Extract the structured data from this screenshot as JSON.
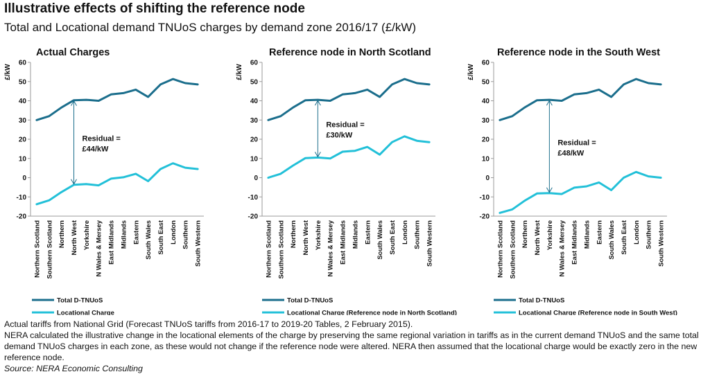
{
  "header": {
    "title": "Illustrative effects of shifting the reference node",
    "subtitle": "Total and Locational demand TNUoS charges by demand zone 2016/17 (£/kW)"
  },
  "chart_data": [
    {
      "type": "line",
      "title": "Actual Charges",
      "ylabel": "£/kW",
      "ylim": [
        -20,
        60
      ],
      "yticks": [
        -20,
        -10,
        0,
        10,
        20,
        30,
        40,
        50,
        60
      ],
      "grid": false,
      "legend_position": "bottom",
      "categories": [
        "Northern Scotland",
        "Southern Scotland",
        "Northern",
        "North West",
        "Yorkshire",
        "N Wales & Mersey",
        "East Midlands",
        "Midlands",
        "Eastern",
        "South Wales",
        "South East",
        "London",
        "Southern",
        "South Western"
      ],
      "series": [
        {
          "name": "Total D-TNUoS",
          "color": "#1b6e8c",
          "values": [
            30,
            32,
            36.5,
            40.3,
            40.5,
            40,
            43.3,
            44,
            45.8,
            42,
            48.5,
            51.3,
            49.2,
            48.5
          ]
        },
        {
          "name": "Locational Charge",
          "color": "#22c0d8",
          "values": [
            -13.8,
            -11.8,
            -7.5,
            -3.7,
            -3.3,
            -4,
            -0.5,
            0.2,
            2,
            -1.8,
            4.5,
            7.5,
            5.2,
            4.5
          ]
        }
      ],
      "annotation": {
        "lines": [
          "Residual =",
          "£44/kW"
        ],
        "category": "North West",
        "from": -3.7,
        "to": 40.3
      }
    },
    {
      "type": "line",
      "title": "Reference node in North Scotland",
      "ylabel": "£/kW",
      "ylim": [
        -20,
        60
      ],
      "yticks": [
        -20,
        -10,
        0,
        10,
        20,
        30,
        40,
        50,
        60
      ],
      "grid": false,
      "legend_position": "bottom",
      "categories": [
        "Northern Scotland",
        "Southern Scotland",
        "Northern",
        "North West",
        "Yorkshire",
        "N Wales & Mersey",
        "East Midlands",
        "Midlands",
        "Eastern",
        "South Wales",
        "South East",
        "London",
        "Southern",
        "South Western"
      ],
      "series": [
        {
          "name": "Total D-TNUoS",
          "color": "#1b6e8c",
          "values": [
            30,
            32,
            36.5,
            40.3,
            40.5,
            40,
            43.3,
            44,
            45.8,
            42,
            48.5,
            51.3,
            49.2,
            48.5
          ]
        },
        {
          "name": "Locational Charge (Reference node in North Scotland)",
          "color": "#22c0d8",
          "values": [
            0,
            2,
            6.3,
            10.2,
            10.5,
            10,
            13.5,
            14,
            16,
            12,
            18.5,
            21.5,
            19.2,
            18.5
          ]
        }
      ],
      "annotation": {
        "lines": [
          "Residual =",
          "£30/kW"
        ],
        "category": "Yorkshire",
        "from": 10.5,
        "to": 40.5
      }
    },
    {
      "type": "line",
      "title": "Reference node in the South West",
      "ylabel": "£/kW",
      "ylim": [
        -20,
        60
      ],
      "yticks": [
        -20,
        -10,
        0,
        10,
        20,
        30,
        40,
        50,
        60
      ],
      "grid": false,
      "legend_position": "bottom",
      "categories": [
        "Northern Scotland",
        "Southern Scotland",
        "Northern",
        "North West",
        "Yorkshire",
        "N Wales & Mersey",
        "East Midlands",
        "Midlands",
        "Eastern",
        "South Wales",
        "South East",
        "London",
        "Southern",
        "South Western"
      ],
      "series": [
        {
          "name": "Total D-TNUoS",
          "color": "#1b6e8c",
          "values": [
            30,
            32,
            36.5,
            40.3,
            40.5,
            40,
            43.3,
            44,
            45.8,
            42,
            48.5,
            51.3,
            49.2,
            48.5
          ]
        },
        {
          "name": "Locational Charge (Reference node in South West)",
          "color": "#22c0d8",
          "values": [
            -18.3,
            -16.5,
            -12,
            -8.2,
            -8,
            -8.5,
            -5.2,
            -4.5,
            -2.5,
            -6.5,
            0,
            3,
            0.7,
            0
          ]
        }
      ],
      "annotation": {
        "lines": [
          "Residual =",
          "£48/kW"
        ],
        "category": "Yorkshire",
        "from": -8,
        "to": 40.5
      }
    }
  ],
  "notes": {
    "line1": "Actual tariffs from National Grid (Forecast TNUoS tariffs from 2016-17 to 2019-20 Tables, 2 February 2015).",
    "line2": "NERA calculated the illustrative change in the locational elements of the charge by preserving the same regional variation in tariffs as in the current demand TNUoS and the same total demand TNUoS charges in each zone, as these would not change if the reference node were altered. NERA then assumed that the locational charge would be exactly zero in the new reference node.",
    "source": "Source: NERA Economic Consulting"
  }
}
